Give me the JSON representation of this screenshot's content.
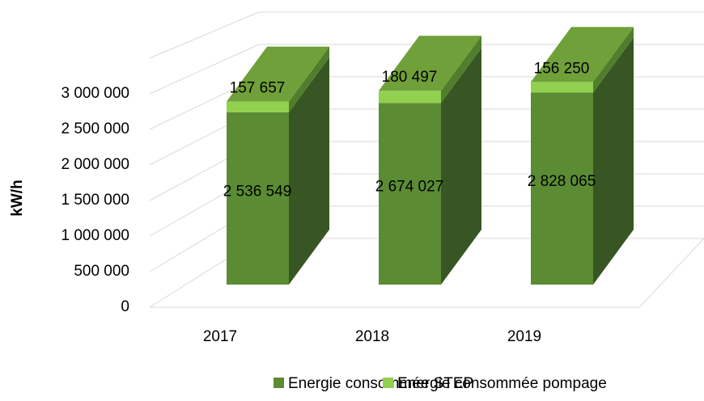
{
  "chart_data": {
    "type": "bar3d_stacked",
    "y_axis_label": "kW/h",
    "categories": [
      "2017",
      "2018",
      "2019"
    ],
    "series": [
      {
        "name": "Energie consommée STEP",
        "color": "#5b8c34",
        "side_color": "#375623",
        "values": [
          2536549,
          2674027,
          2828065
        ],
        "value_labels": [
          "2 536 549",
          "2 674 027",
          "2 828 065"
        ]
      },
      {
        "name": "Energie consommée pompage",
        "color": "#92d050",
        "side_color": "#507e2c",
        "top_color": "#70a03a",
        "values": [
          157657,
          180497,
          156250
        ],
        "value_labels": [
          "157 657",
          "180 497",
          "156 250"
        ]
      }
    ],
    "ylim": [
      0,
      3500000
    ],
    "yticks": [
      {
        "value": 0,
        "label": "0"
      },
      {
        "value": 500000,
        "label": "500 000"
      },
      {
        "value": 1000000,
        "label": "1 000 000"
      },
      {
        "value": 1500000,
        "label": "1 500 000"
      },
      {
        "value": 2000000,
        "label": "2 000 000"
      },
      {
        "value": 2500000,
        "label": "2 500 000"
      },
      {
        "value": 3000000,
        "label": "3 000 000"
      }
    ],
    "grid": true,
    "legend": "bottom"
  }
}
